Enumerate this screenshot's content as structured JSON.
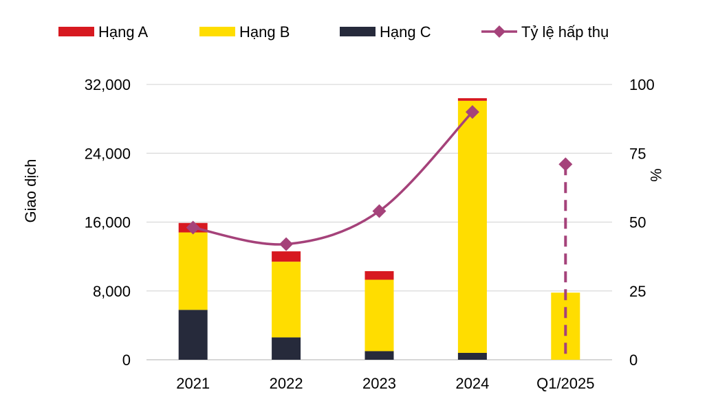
{
  "chart_data": {
    "type": "bar",
    "stacked": true,
    "categories": [
      "2021",
      "2022",
      "2023",
      "2024",
      "Q1/2025"
    ],
    "series": [
      {
        "name": "Hạng C",
        "color": "#262A3B",
        "values": [
          5800,
          2600,
          1000,
          800,
          0
        ]
      },
      {
        "name": "Hạng B",
        "color": "#FFDD00",
        "values": [
          9000,
          8800,
          8300,
          29300,
          7800
        ]
      },
      {
        "name": "Hạng A",
        "color": "#D71920",
        "values": [
          1100,
          1200,
          1000,
          300,
          0
        ]
      }
    ],
    "line_series": {
      "name": "Tỷ lệ hấp thụ",
      "color": "#A5427A",
      "axis": "right",
      "values": [
        48,
        42,
        54,
        90,
        71
      ],
      "dashed_segment_category": "Q1/2025"
    },
    "ylabel": "Giao dịch",
    "y2label": "%",
    "ylim": [
      0,
      32000
    ],
    "y2lim": [
      0,
      100
    ],
    "yticks": [
      "0",
      "8,000",
      "16,000",
      "24,000",
      "32,000"
    ],
    "y2ticks": [
      "0",
      "25",
      "50",
      "75",
      "100"
    ],
    "legend": {
      "placement": "top",
      "items": [
        {
          "label": "Hạng A",
          "color": "#D71920",
          "kind": "bar"
        },
        {
          "label": "Hạng B",
          "color": "#FFDD00",
          "kind": "bar"
        },
        {
          "label": "Hạng C",
          "color": "#262A3B",
          "kind": "bar"
        },
        {
          "label": "Tỷ lệ hấp thụ",
          "color": "#A5427A",
          "kind": "line-marker"
        }
      ]
    },
    "grid": true,
    "gridColor": "#D9D9D9"
  }
}
